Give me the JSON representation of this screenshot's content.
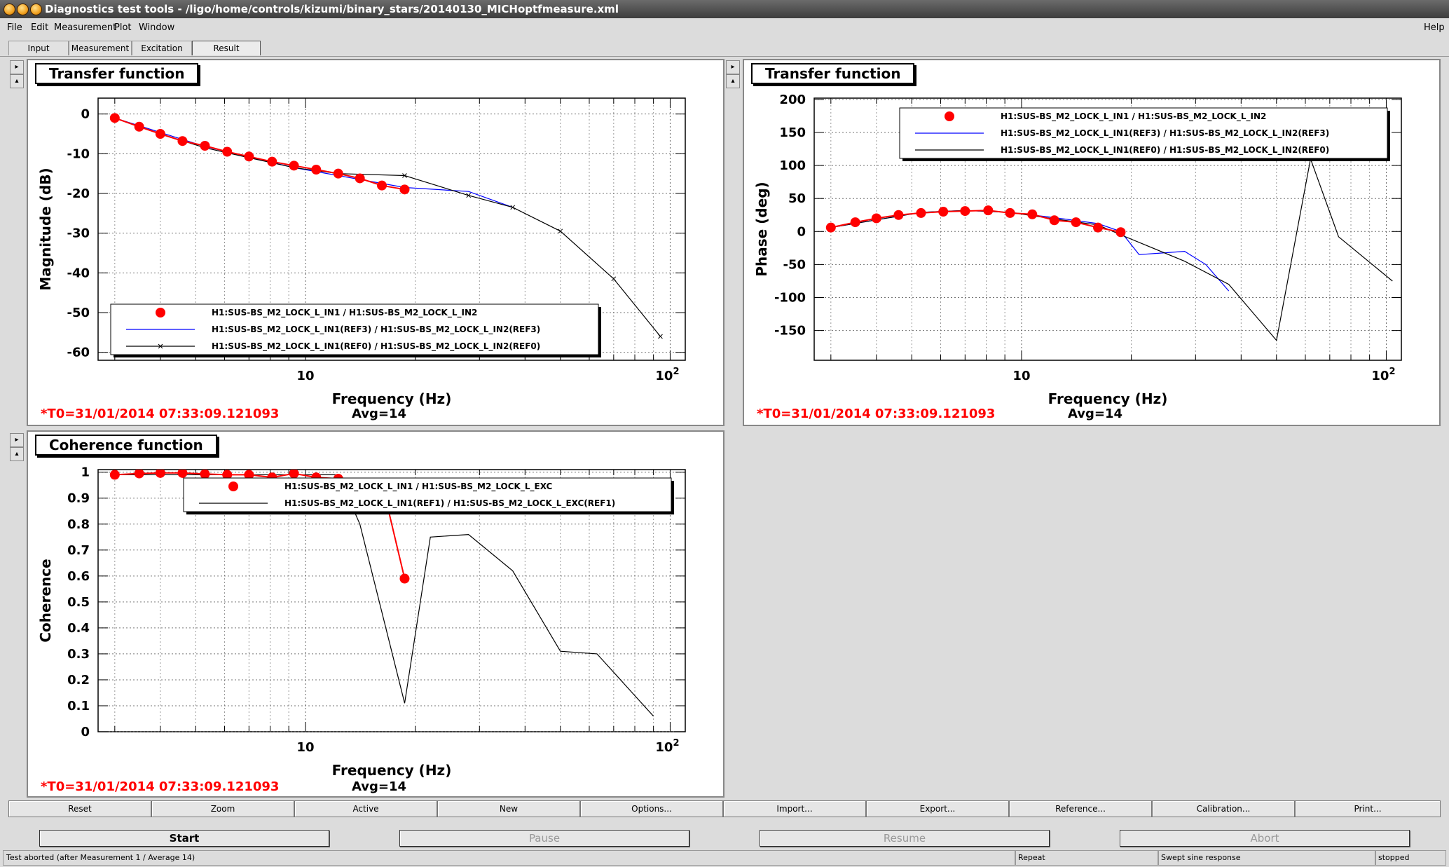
{
  "window": {
    "title": "Diagnostics test tools - /ligo/home/controls/kizumi/binary_stars/20140130_MICHoptfmeasure.xml"
  },
  "menu": {
    "file": "File",
    "edit": "Edit",
    "measurement": "Measurement",
    "plot": "Plot",
    "window": "Window",
    "help": "Help"
  },
  "tabs": [
    "Input",
    "Measurement",
    "Excitation",
    "Result"
  ],
  "panels": {
    "mag": {
      "title": "Transfer function",
      "ylabel": "Magnitude (dB)",
      "xlabel": "Frequency (Hz)",
      "t0": "*T0=31/01/2014 07:33:09.121093",
      "avg": "Avg=14",
      "legend": [
        "H1:SUS-BS_M2_LOCK_L_IN1 / H1:SUS-BS_M2_LOCK_L_IN2",
        "H1:SUS-BS_M2_LOCK_L_IN1(REF3) / H1:SUS-BS_M2_LOCK_L_IN2(REF3)",
        "H1:SUS-BS_M2_LOCK_L_IN1(REF0) / H1:SUS-BS_M2_LOCK_L_IN2(REF0)"
      ]
    },
    "phase": {
      "title": "Transfer function",
      "ylabel": "Phase (deg)",
      "xlabel": "Frequency (Hz)",
      "t0": "*T0=31/01/2014 07:33:09.121093",
      "avg": "Avg=14",
      "legend": [
        "H1:SUS-BS_M2_LOCK_L_IN1 / H1:SUS-BS_M2_LOCK_L_IN2",
        "H1:SUS-BS_M2_LOCK_L_IN1(REF3) / H1:SUS-BS_M2_LOCK_L_IN2(REF3)",
        "H1:SUS-BS_M2_LOCK_L_IN1(REF0) / H1:SUS-BS_M2_LOCK_L_IN2(REF0)"
      ]
    },
    "coh": {
      "title": "Coherence function",
      "ylabel": "Coherence",
      "xlabel": "Frequency (Hz)",
      "t0": "*T0=31/01/2014 07:33:09.121093",
      "avg": "Avg=14",
      "legend": [
        "H1:SUS-BS_M2_LOCK_L_IN1 / H1:SUS-BS_M2_LOCK_L_EXC",
        "H1:SUS-BS_M2_LOCK_L_IN1(REF1) / H1:SUS-BS_M2_LOCK_L_EXC(REF1)"
      ]
    }
  },
  "chart_data": [
    {
      "type": "line",
      "title": "Transfer function",
      "xlabel": "Frequency (Hz)",
      "ylabel": "Magnitude (dB)",
      "xscale": "log",
      "xlim": [
        2.7,
        110
      ],
      "ylim": [
        -62,
        4
      ],
      "yticks": [
        0,
        -10,
        -20,
        -30,
        -40,
        -50,
        -60
      ],
      "xticklabels": [
        "10",
        "10^2"
      ],
      "grid": true,
      "legend_position": "bottom-left",
      "series": [
        {
          "name": "H1:SUS-BS_M2_LOCK_L_IN1 / H1:SUS-BS_M2_LOCK_L_IN2",
          "style": "red-dots",
          "color": "#ff0000",
          "x": [
            3.0,
            3.5,
            4.0,
            4.6,
            5.3,
            6.1,
            7.0,
            8.1,
            9.3,
            10.7,
            12.3,
            14.1,
            16.2,
            18.7
          ],
          "y": [
            -1,
            -3.2,
            -5,
            -6.8,
            -8,
            -9.5,
            -10.7,
            -12,
            -13,
            -14,
            -15,
            -16.2,
            -18,
            -19
          ]
        },
        {
          "name": "H1:SUS-BS_M2_LOCK_L_IN1(REF3) / H1:SUS-BS_M2_LOCK_L_IN2(REF3)",
          "style": "blue-line",
          "color": "#0000ff",
          "x": [
            3.0,
            5.3,
            9.3,
            12.3,
            18.7,
            28,
            37
          ],
          "y": [
            -1,
            -8.2,
            -13.5,
            -15.5,
            -18.5,
            -19.5,
            -23.5
          ]
        },
        {
          "name": "H1:SUS-BS_M2_LOCK_L_IN1(REF0) / H1:SUS-BS_M2_LOCK_L_IN2(REF0)",
          "style": "black-line-x",
          "color": "#000000",
          "x": [
            3.0,
            4.0,
            5.3,
            7.0,
            9.3,
            12.3,
            18.7,
            28,
            37,
            50,
            70,
            94
          ],
          "y": [
            -1,
            -5,
            -8.5,
            -11,
            -13.5,
            -15,
            -15.5,
            -20.5,
            -23.5,
            -29.5,
            -41.5,
            -56
          ]
        }
      ]
    },
    {
      "type": "line",
      "title": "Transfer function",
      "xlabel": "Frequency (Hz)",
      "ylabel": "Phase (deg)",
      "xscale": "log",
      "xlim": [
        2.7,
        110
      ],
      "ylim": [
        -195,
        202
      ],
      "yticks": [
        200,
        150,
        100,
        50,
        0,
        -50,
        -100,
        -150
      ],
      "xticklabels": [
        "10",
        "10^2"
      ],
      "grid": true,
      "legend_position": "top-right",
      "series": [
        {
          "name": "H1:SUS-BS_M2_LOCK_L_IN1 / H1:SUS-BS_M2_LOCK_L_IN2",
          "style": "red-dots",
          "color": "#ff0000",
          "x": [
            3.0,
            3.5,
            4.0,
            4.6,
            5.3,
            6.1,
            7.0,
            8.1,
            9.3,
            10.7,
            12.3,
            14.1,
            16.2,
            18.7
          ],
          "y": [
            6,
            14,
            20,
            25,
            28,
            30,
            31,
            32,
            28,
            26,
            17,
            14,
            6,
            -1
          ]
        },
        {
          "name": "H1:SUS-BS_M2_LOCK_L_IN1(REF3) / H1:SUS-BS_M2_LOCK_L_IN2(REF3)",
          "style": "blue-line",
          "color": "#0000ff",
          "x": [
            3.0,
            5.3,
            7.0,
            9.3,
            12.3,
            16.2,
            18.7,
            21,
            28,
            32,
            37
          ],
          "y": [
            6,
            29,
            32,
            29,
            21,
            12,
            0,
            -35,
            -30,
            -50,
            -90
          ]
        },
        {
          "name": "H1:SUS-BS_M2_LOCK_L_IN1(REF0) / H1:SUS-BS_M2_LOCK_L_IN2(REF0)",
          "style": "black-line",
          "color": "#000000",
          "x": [
            3.0,
            5.3,
            7.0,
            9.3,
            12.3,
            16.2,
            18.7,
            28,
            37,
            50,
            62,
            74,
            104
          ],
          "y": [
            6,
            29,
            32,
            29,
            19,
            10,
            -5,
            -45,
            -80,
            -165,
            110,
            -8,
            -75
          ]
        }
      ]
    },
    {
      "type": "line",
      "title": "Coherence function",
      "xlabel": "Frequency (Hz)",
      "ylabel": "Coherence",
      "xscale": "log",
      "xlim": [
        2.7,
        110
      ],
      "ylim": [
        0,
        1.01
      ],
      "yticks": [
        1,
        0.9,
        0.8,
        0.7,
        0.6,
        0.5,
        0.4,
        0.3,
        0.2,
        0.1,
        0
      ],
      "xticklabels": [
        "10",
        "10^2"
      ],
      "grid": true,
      "legend_position": "top-right",
      "series": [
        {
          "name": "H1:SUS-BS_M2_LOCK_L_IN1 / H1:SUS-BS_M2_LOCK_L_EXC",
          "style": "red-dots",
          "color": "#ff0000",
          "x": [
            3.0,
            3.5,
            4.0,
            4.6,
            5.3,
            6.1,
            7.0,
            8.1,
            9.3,
            10.7,
            12.3,
            14.1,
            16.2,
            18.7
          ],
          "y": [
            0.99,
            0.995,
            0.997,
            0.997,
            0.993,
            0.99,
            0.99,
            0.98,
            0.995,
            0.98,
            0.975,
            0.96,
            0.96,
            0.59
          ]
        },
        {
          "name": "H1:SUS-BS_M2_LOCK_L_IN1(REF1) / H1:SUS-BS_M2_LOCK_L_EXC(REF1)",
          "style": "black-line",
          "color": "#000000",
          "x": [
            3.0,
            5.3,
            9.3,
            12.3,
            14.1,
            18.7,
            22,
            28,
            37,
            50,
            63,
            90
          ],
          "y": [
            0.99,
            0.99,
            0.99,
            0.99,
            0.8,
            0.11,
            0.75,
            0.76,
            0.62,
            0.31,
            0.3,
            0.06
          ]
        }
      ]
    }
  ],
  "toolbar": [
    "Reset",
    "Zoom",
    "Active",
    "New",
    "Options...",
    "Import...",
    "Export...",
    "Reference...",
    "Calibration...",
    "Print..."
  ],
  "controls": {
    "start": "Start",
    "pause": "Pause",
    "resume": "Resume",
    "abort": "Abort"
  },
  "status": {
    "message": "Test aborted (after Measurement 1 / Average 14)",
    "mode": "Repeat",
    "type": "Swept sine response",
    "state": "stopped"
  }
}
